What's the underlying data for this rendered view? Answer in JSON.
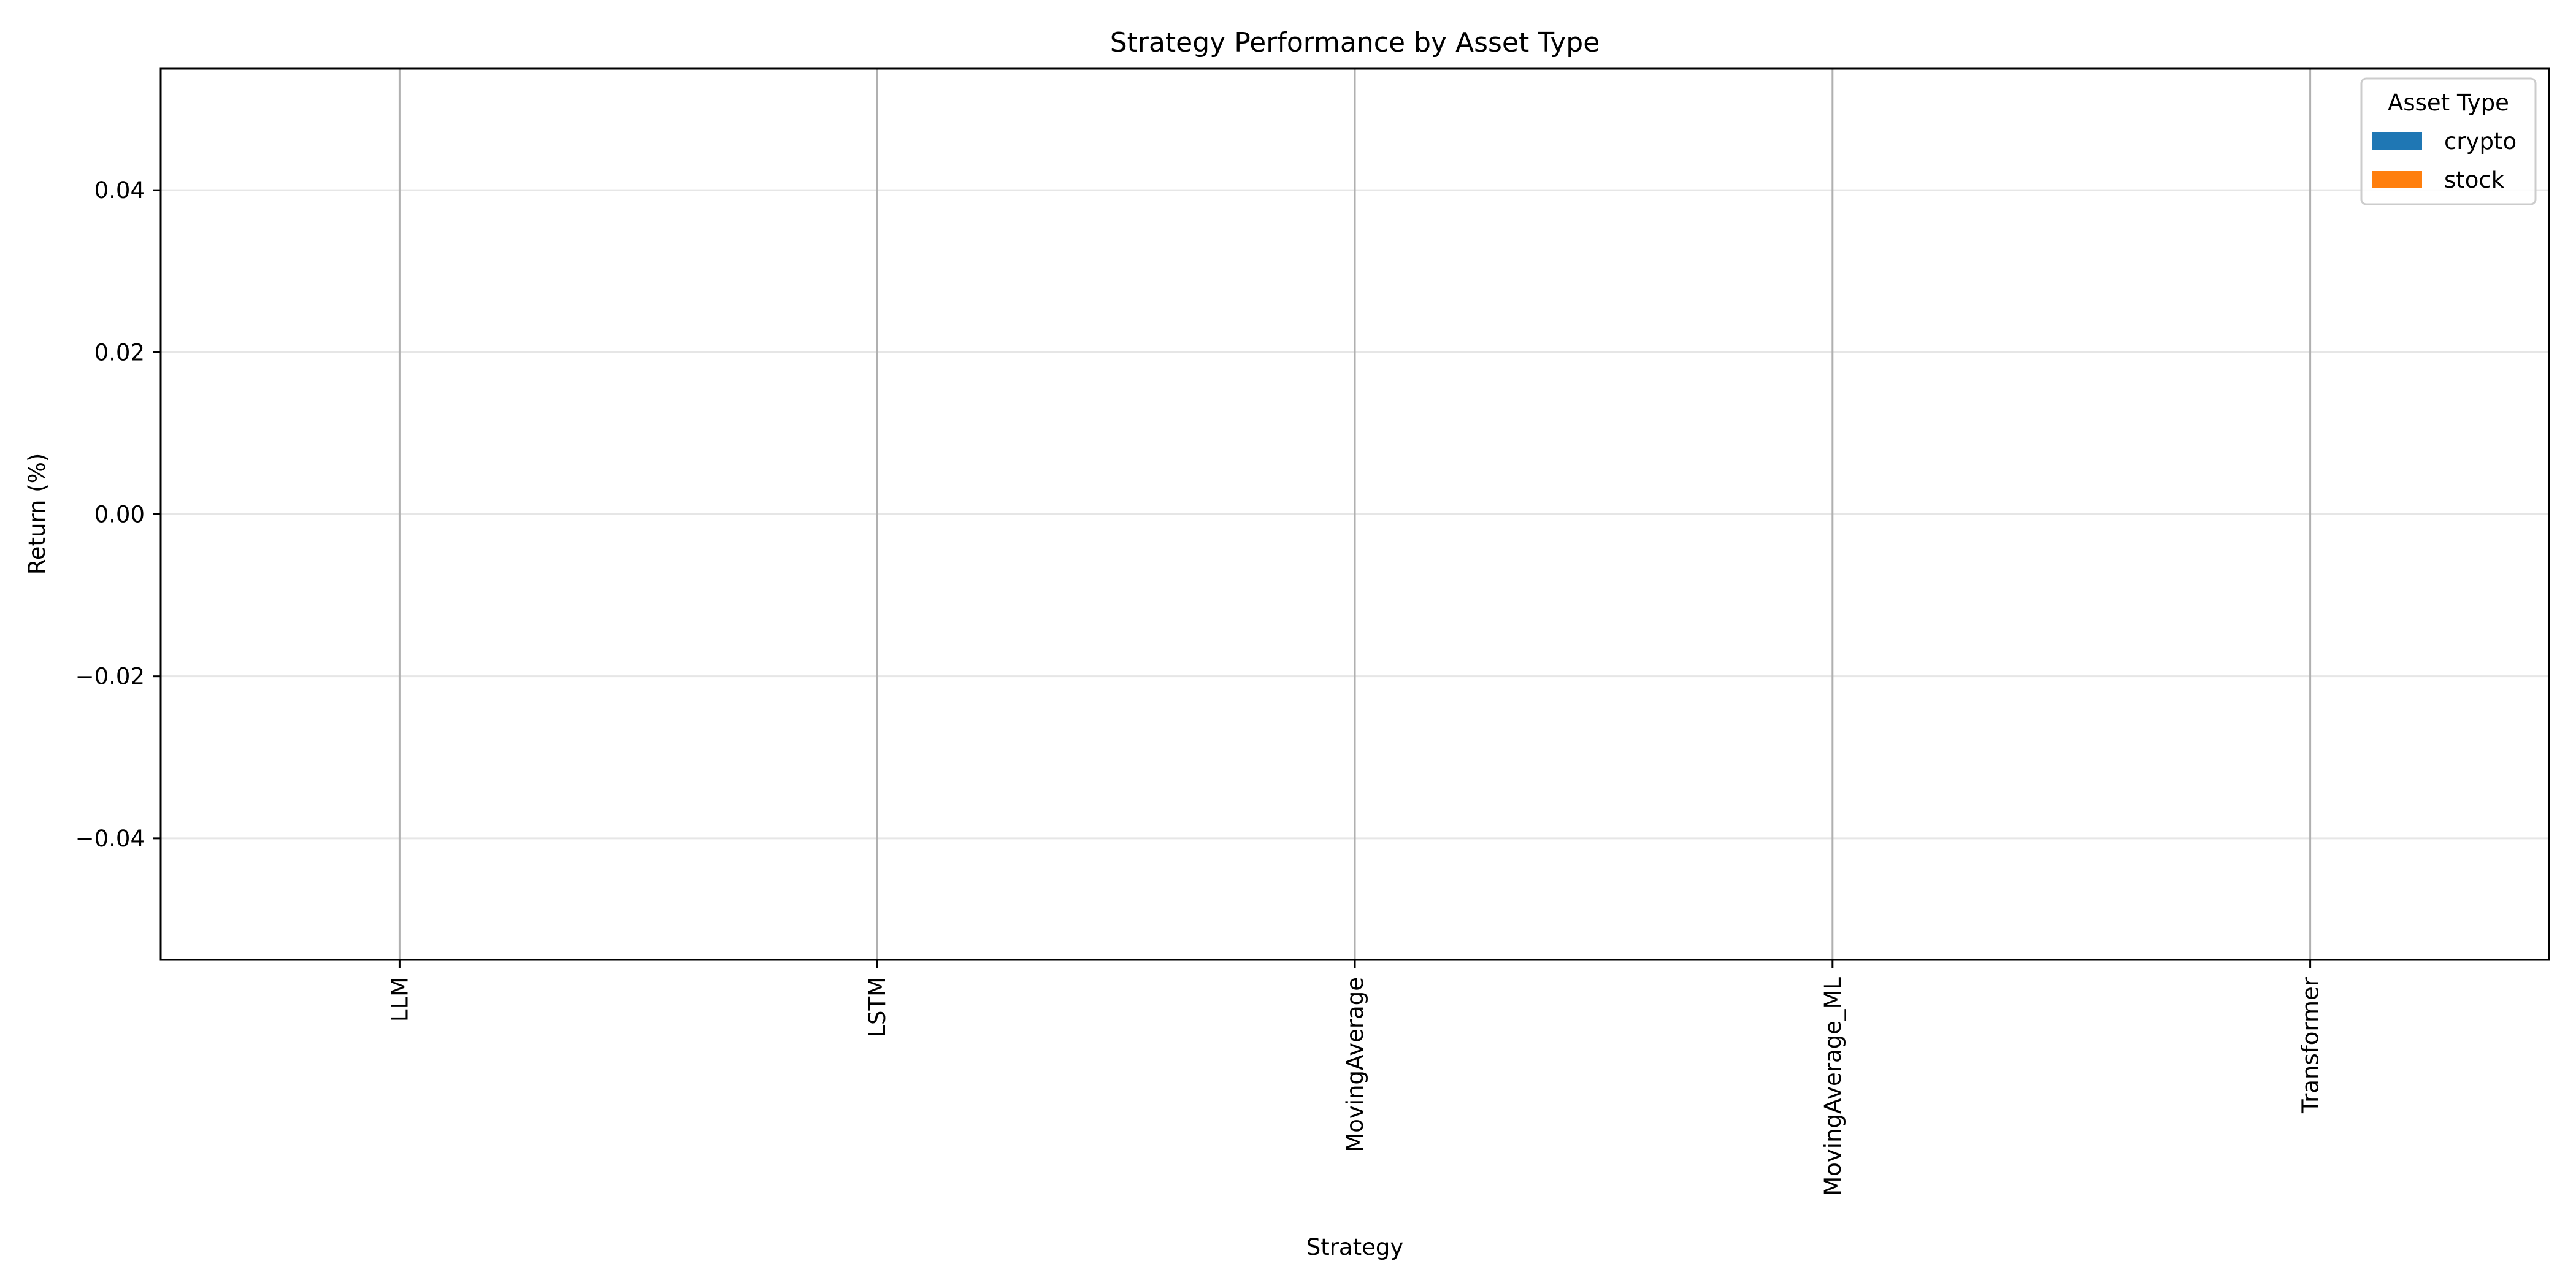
{
  "chart_data": {
    "type": "bar",
    "title": "Strategy Performance by Asset Type",
    "xlabel": "Strategy",
    "ylabel": "Return (%)",
    "categories": [
      "LLM",
      "LSTM",
      "MovingAverage",
      "MovingAverage_ML",
      "Transformer"
    ],
    "series": [
      {
        "name": "crypto",
        "color": "#1f77b4",
        "values": [
          0,
          0,
          0,
          0,
          0
        ]
      },
      {
        "name": "stock",
        "color": "#ff7f0e",
        "values": [
          0,
          0,
          0,
          0,
          0
        ]
      }
    ],
    "ylim": [
      -0.055,
      0.055
    ],
    "yticks": [
      -0.04,
      -0.02,
      0.0,
      0.02,
      0.04
    ],
    "ytick_labels": [
      "−0.04",
      "−0.02",
      "0.00",
      "0.02",
      "0.04"
    ],
    "grid": true,
    "legend": {
      "title": "Asset Type",
      "placement": "upper-right"
    }
  }
}
